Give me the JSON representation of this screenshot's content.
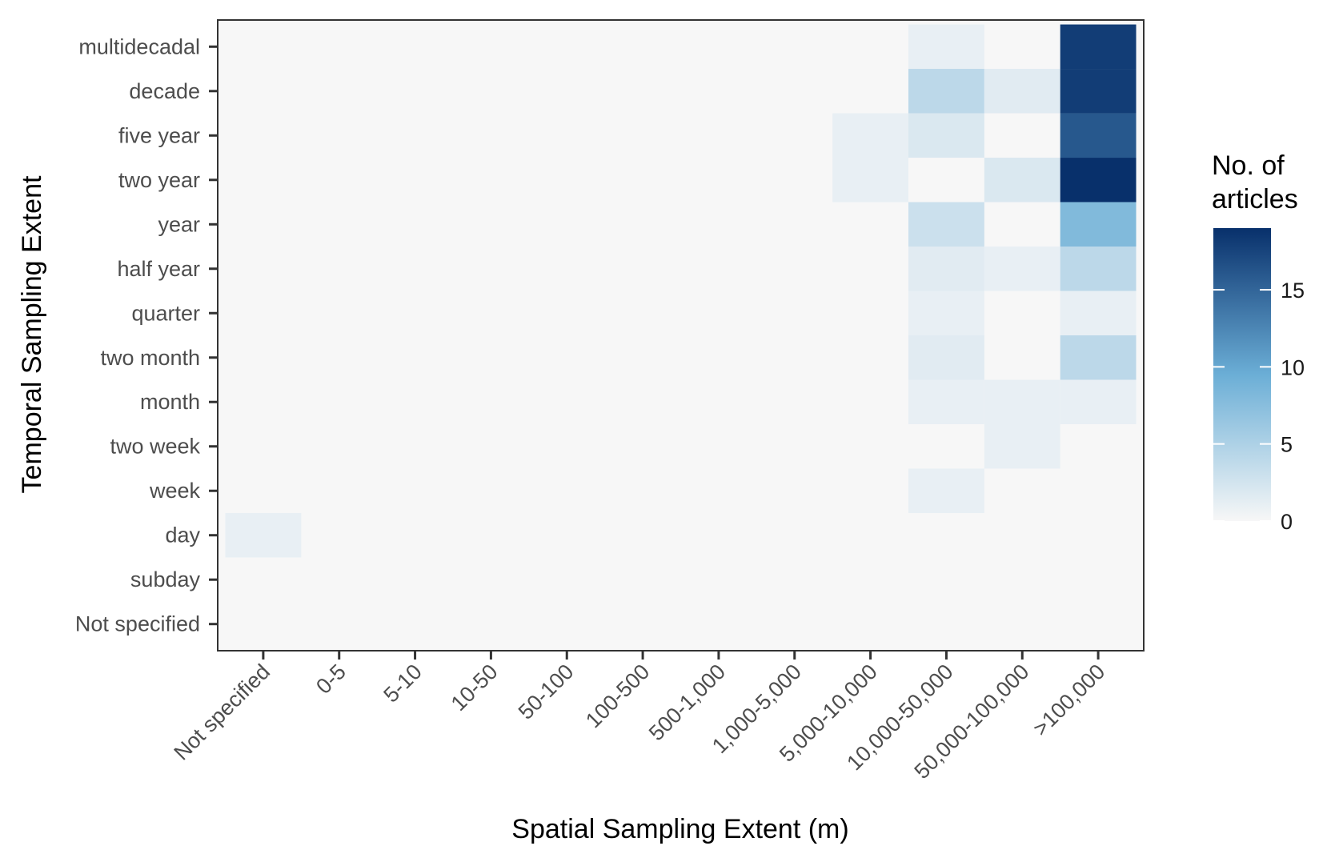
{
  "colors": {
    "panel_background": "#f7f7f7",
    "panel_border": "#333333",
    "tick_color": "#333333",
    "tick_label_color": "#4d4d4d",
    "scale_low": "#f7f7f7",
    "scale_mid": "#6baed6",
    "scale_high": "#08306b"
  },
  "chart_data": {
    "type": "heatmap",
    "xlabel": "Spatial Sampling Extent (m)",
    "ylabel": "Temporal Sampling Extent",
    "x_categories": [
      "Not specified",
      "0-5",
      "5-10",
      "10-50",
      "50-100",
      "100-500",
      "500-1,000",
      "1,000-5,000",
      "5,000-10,000",
      "10,000-50,000",
      "50,000-100,000",
      ">100,000"
    ],
    "y_categories": [
      "multidecadal",
      "decade",
      "five year",
      "two year",
      "year",
      "half year",
      "quarter",
      "two month",
      "month",
      "two week",
      "week",
      "day",
      "subday",
      "Not specified"
    ],
    "cells": [
      {
        "x": "10,000-50,000",
        "y": "multidecadal",
        "value": 1
      },
      {
        "x": ">100,000",
        "y": "multidecadal",
        "value": 18
      },
      {
        "x": "10,000-50,000",
        "y": "decade",
        "value": 4
      },
      {
        "x": "50,000-100,000",
        "y": "decade",
        "value": 1.5
      },
      {
        "x": ">100,000",
        "y": "decade",
        "value": 18
      },
      {
        "x": "5,000-10,000",
        "y": "five year",
        "value": 1
      },
      {
        "x": "10,000-50,000",
        "y": "five year",
        "value": 2
      },
      {
        "x": ">100,000",
        "y": "five year",
        "value": 16
      },
      {
        "x": "5,000-10,000",
        "y": "two year",
        "value": 1
      },
      {
        "x": "50,000-100,000",
        "y": "two year",
        "value": 2
      },
      {
        "x": ">100,000",
        "y": "two year",
        "value": 19
      },
      {
        "x": "10,000-50,000",
        "y": "year",
        "value": 3
      },
      {
        "x": ">100,000",
        "y": "year",
        "value": 8
      },
      {
        "x": "10,000-50,000",
        "y": "half year",
        "value": 1.5
      },
      {
        "x": "50,000-100,000",
        "y": "half year",
        "value": 1
      },
      {
        "x": ">100,000",
        "y": "half year",
        "value": 4
      },
      {
        "x": "10,000-50,000",
        "y": "quarter",
        "value": 1
      },
      {
        "x": ">100,000",
        "y": "quarter",
        "value": 1
      },
      {
        "x": "10,000-50,000",
        "y": "two month",
        "value": 1.5
      },
      {
        "x": ">100,000",
        "y": "two month",
        "value": 4
      },
      {
        "x": "10,000-50,000",
        "y": "month",
        "value": 1
      },
      {
        "x": "50,000-100,000",
        "y": "month",
        "value": 1
      },
      {
        "x": ">100,000",
        "y": "month",
        "value": 1
      },
      {
        "x": "50,000-100,000",
        "y": "two week",
        "value": 1
      },
      {
        "x": "10,000-50,000",
        "y": "week",
        "value": 1
      },
      {
        "x": "Not specified",
        "y": "day",
        "value": 1
      }
    ],
    "legend": {
      "title": [
        "No. of",
        "articles"
      ],
      "ticks": [
        "0",
        "5",
        "10",
        "15"
      ],
      "tick_values": [
        0,
        5,
        10,
        15
      ],
      "range": [
        0,
        19
      ],
      "placement": "right"
    },
    "grid": false
  }
}
